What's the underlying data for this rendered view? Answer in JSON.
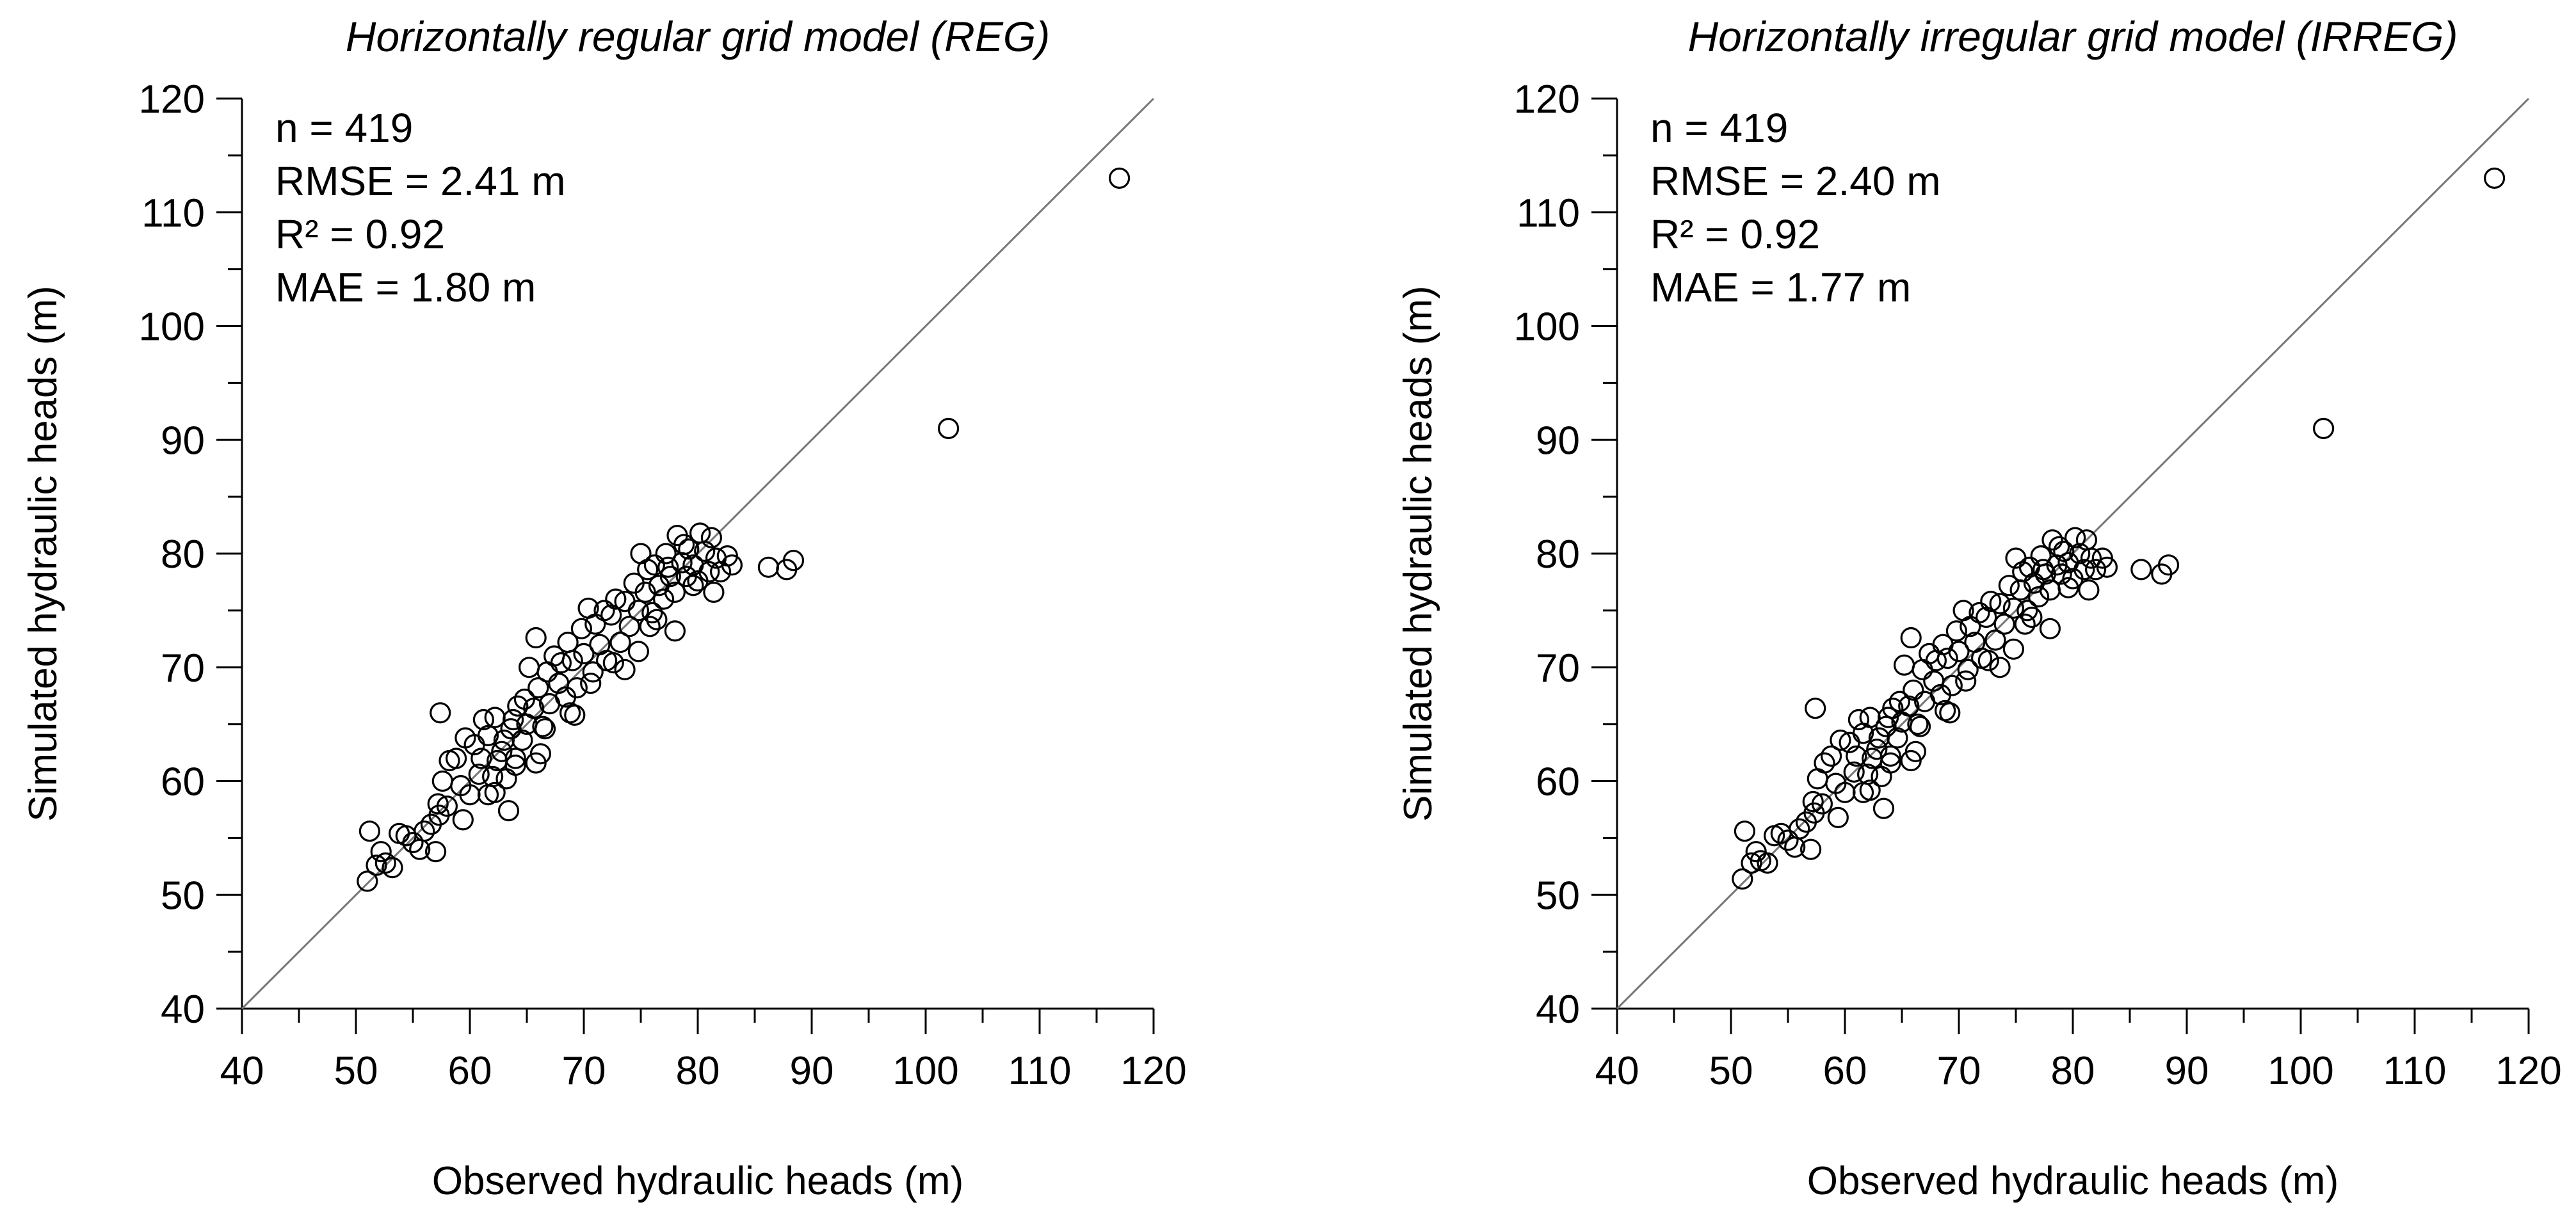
{
  "chart_data": [
    {
      "type": "scatter",
      "title": "Horizontally regular grid model (REG)",
      "xlabel": "Observed hydraulic heads (m)",
      "ylabel": "Simulated hydraulic heads (m)",
      "xlim": [
        40,
        120
      ],
      "ylim": [
        40,
        120
      ],
      "major_ticks": [
        40,
        50,
        60,
        70,
        80,
        90,
        100,
        110,
        120
      ],
      "tick_labels": [
        "40",
        "50",
        "60",
        "70",
        "80",
        "90",
        "100",
        "110",
        "120"
      ],
      "reference_line": {
        "type": "1:1",
        "from": [
          40,
          40
        ],
        "to": [
          120,
          120
        ]
      },
      "stats": [
        "n = 419",
        "RMSE = 2.41 m",
        "R² = 0.92",
        "MAE = 1.80 m"
      ],
      "n": 419,
      "x": [
        51.0,
        51.2,
        51.8,
        52.2,
        52.6,
        53.2,
        53.8,
        54.4,
        55.0,
        55.6,
        56.0,
        56.6,
        57.2,
        57.3,
        57.6,
        58.0,
        58.2,
        58.8,
        59.2,
        59.6,
        60.0,
        60.4,
        60.8,
        61.0,
        61.2,
        61.6,
        62.0,
        62.2,
        62.4,
        62.8,
        63.0,
        63.2,
        63.6,
        63.8,
        64.0,
        64.2,
        64.6,
        64.8,
        65.0,
        65.2,
        65.6,
        65.8,
        66.0,
        66.4,
        66.8,
        67.0,
        67.4,
        67.8,
        68.0,
        68.4,
        68.6,
        69.0,
        69.4,
        69.8,
        70.0,
        70.4,
        70.8,
        71.0,
        71.4,
        71.8,
        72.0,
        72.4,
        72.8,
        73.2,
        73.6,
        74.0,
        74.4,
        74.8,
        75.0,
        75.4,
        75.6,
        76.0,
        76.2,
        76.6,
        77.0,
        77.2,
        77.6,
        78.0,
        78.2,
        78.6,
        79.0,
        79.2,
        79.6,
        80.0,
        80.2,
        80.6,
        81.0,
        81.2,
        81.6,
        82.0,
        82.6,
        83.0,
        86.2,
        87.8,
        88.4,
        102.0,
        117.0,
        57.4,
        63.4,
        65.8,
        74.8,
        78.0,
        79.6,
        81.4,
        62.2,
        64.0,
        66.6,
        68.8,
        70.6,
        72.6,
        75.8,
        77.4,
        57.0,
        59.4,
        61.6,
        66.2,
        69.2,
        73.6,
        76.4,
        78.8
      ],
      "y": [
        51.2,
        55.6,
        52.6,
        53.8,
        52.8,
        52.4,
        55.4,
        55.2,
        54.6,
        54.0,
        55.6,
        56.2,
        58.0,
        57.0,
        60.0,
        57.8,
        61.8,
        62.0,
        59.6,
        63.8,
        58.8,
        63.2,
        60.6,
        62.0,
        65.4,
        64.0,
        60.4,
        65.6,
        61.8,
        62.6,
        63.6,
        60.2,
        64.6,
        65.4,
        62.0,
        66.6,
        63.6,
        67.2,
        65.0,
        70.0,
        66.4,
        61.6,
        68.2,
        64.8,
        69.6,
        66.8,
        71.0,
        68.6,
        70.4,
        67.4,
        72.2,
        70.6,
        68.2,
        73.4,
        71.2,
        75.2,
        69.6,
        73.8,
        72.0,
        75.0,
        70.6,
        74.6,
        76.0,
        72.2,
        75.8,
        73.6,
        77.4,
        75.0,
        80.0,
        76.6,
        78.6,
        74.8,
        79.0,
        77.2,
        76.0,
        80.0,
        78.0,
        76.6,
        81.6,
        79.2,
        78.0,
        80.4,
        79.0,
        77.6,
        81.8,
        80.2,
        78.4,
        81.4,
        79.6,
        78.4,
        79.8,
        79.0,
        78.8,
        78.6,
        79.4,
        91.0,
        113.0,
        66.0,
        57.4,
        72.6,
        71.4,
        73.2,
        77.2,
        76.6,
        59.0,
        61.4,
        64.6,
        66.0,
        68.6,
        70.4,
        73.6,
        78.8,
        53.8,
        56.6,
        58.8,
        62.4,
        65.8,
        69.8,
        74.2,
        80.8
      ]
    },
    {
      "type": "scatter",
      "title": "Horizontally irregular grid model (IRREG)",
      "xlabel": "Observed hydraulic heads (m)",
      "ylabel": "Simulated hydraulic heads (m)",
      "xlim": [
        40,
        120
      ],
      "ylim": [
        40,
        120
      ],
      "major_ticks": [
        40,
        50,
        60,
        70,
        80,
        90,
        100,
        110,
        120
      ],
      "tick_labels": [
        "40",
        "50",
        "60",
        "70",
        "80",
        "90",
        "100",
        "110",
        "120"
      ],
      "reference_line": {
        "type": "1:1",
        "from": [
          40,
          40
        ],
        "to": [
          120,
          120
        ]
      },
      "stats": [
        "n = 419",
        "RMSE = 2.40 m",
        "R² = 0.92",
        "MAE = 1.77 m"
      ],
      "n": 419,
      "x": [
        51.0,
        51.2,
        51.8,
        52.2,
        52.6,
        53.2,
        53.8,
        54.4,
        55.0,
        55.6,
        56.0,
        56.6,
        57.2,
        57.3,
        57.6,
        58.0,
        58.2,
        58.8,
        59.2,
        59.6,
        60.0,
        60.4,
        60.8,
        61.0,
        61.2,
        61.6,
        62.0,
        62.2,
        62.4,
        62.8,
        63.0,
        63.2,
        63.6,
        63.8,
        64.0,
        64.2,
        64.6,
        64.8,
        65.0,
        65.2,
        65.6,
        65.8,
        66.0,
        66.4,
        66.8,
        67.0,
        67.4,
        67.8,
        68.0,
        68.4,
        68.6,
        69.0,
        69.4,
        69.8,
        70.0,
        70.4,
        70.8,
        71.0,
        71.4,
        71.8,
        72.0,
        72.4,
        72.8,
        73.2,
        73.6,
        74.0,
        74.4,
        74.8,
        75.0,
        75.4,
        75.6,
        76.0,
        76.2,
        76.6,
        77.0,
        77.2,
        77.6,
        78.0,
        78.2,
        78.6,
        79.0,
        79.2,
        79.6,
        80.0,
        80.2,
        80.6,
        81.0,
        81.2,
        81.6,
        82.0,
        82.6,
        83.0,
        86.0,
        87.8,
        88.4,
        102.0,
        117.0,
        57.4,
        63.4,
        65.8,
        74.8,
        78.0,
        79.6,
        81.4,
        62.2,
        64.0,
        66.6,
        68.8,
        70.6,
        72.6,
        75.8,
        77.4,
        57.0,
        59.4,
        61.6,
        66.2,
        69.2,
        73.6,
        76.4,
        78.8
      ],
      "y": [
        51.4,
        55.6,
        52.8,
        53.8,
        53.0,
        52.8,
        55.2,
        55.4,
        54.8,
        54.2,
        55.8,
        56.4,
        58.2,
        57.2,
        60.2,
        58.0,
        61.6,
        62.2,
        59.8,
        63.6,
        59.0,
        63.4,
        60.8,
        62.2,
        65.4,
        64.2,
        60.6,
        65.6,
        62.0,
        62.8,
        63.8,
        60.4,
        64.8,
        65.6,
        62.2,
        66.4,
        63.8,
        67.0,
        65.2,
        70.2,
        66.6,
        61.8,
        68.0,
        65.0,
        69.8,
        67.0,
        71.2,
        68.8,
        70.6,
        67.6,
        72.0,
        70.8,
        68.4,
        73.2,
        71.4,
        75.0,
        69.8,
        73.6,
        72.2,
        74.8,
        70.8,
        74.4,
        75.8,
        72.4,
        75.6,
        73.8,
        77.2,
        75.2,
        79.6,
        76.8,
        78.4,
        75.0,
        78.8,
        77.4,
        76.2,
        79.8,
        78.2,
        76.8,
        81.2,
        79.0,
        78.2,
        80.2,
        79.2,
        77.8,
        81.4,
        80.0,
        78.6,
        81.2,
        79.6,
        78.6,
        79.6,
        78.8,
        78.6,
        78.2,
        79.0,
        91.0,
        113.0,
        66.4,
        57.6,
        72.6,
        71.6,
        73.4,
        77.0,
        76.8,
        59.2,
        61.6,
        64.8,
        66.2,
        68.8,
        70.6,
        73.8,
        78.6,
        54.0,
        56.8,
        59.0,
        62.6,
        66.0,
        70.0,
        74.4,
        80.6
      ]
    }
  ]
}
